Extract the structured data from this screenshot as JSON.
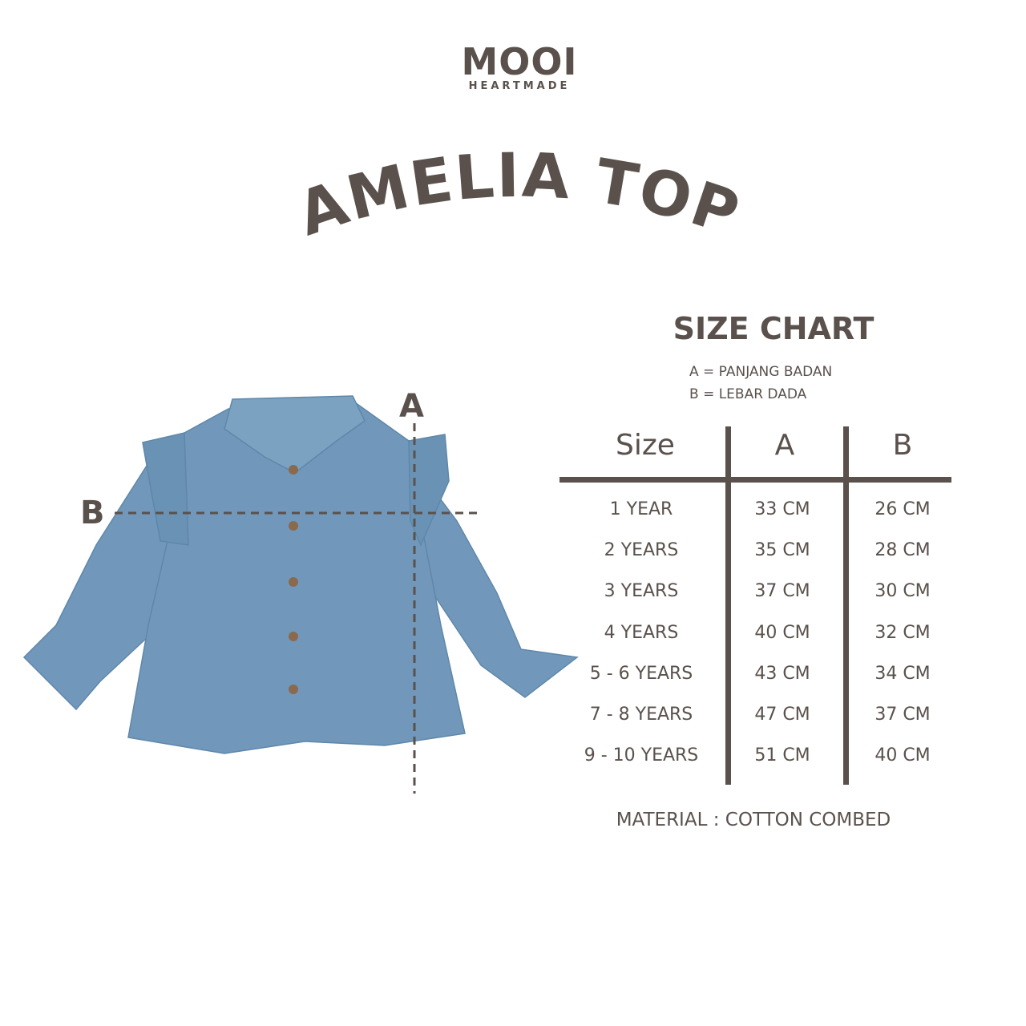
{
  "brand": {
    "name": "MOOI",
    "tagline": "HEARTMADE"
  },
  "product_title": "AMELIA TOP",
  "size_chart": {
    "title": "SIZE CHART",
    "legend": [
      "A = PANJANG BADAN",
      "B = LEBAR DADA"
    ],
    "headers": [
      "Size",
      "A",
      "B"
    ],
    "rows": [
      [
        "1 YEAR",
        "33 CM",
        "26 CM"
      ],
      [
        "2 YEARS",
        "35 CM",
        "28 CM"
      ],
      [
        "3 YEARS",
        "37 CM",
        "30 CM"
      ],
      [
        "4 YEARS",
        "40 CM",
        "32 CM"
      ],
      [
        "5 - 6 YEARS",
        "43 CM",
        "34 CM"
      ],
      [
        "7 - 8 YEARS",
        "47 CM",
        "37 CM"
      ],
      [
        "9 - 10 YEARS",
        "51 CM",
        "40 CM"
      ]
    ],
    "material": "MATERIAL : COTTON COMBED"
  },
  "diagram": {
    "label_a": "A",
    "label_b": "B"
  },
  "colors": {
    "text": "#5a514c",
    "shirt": "#7198ba"
  }
}
